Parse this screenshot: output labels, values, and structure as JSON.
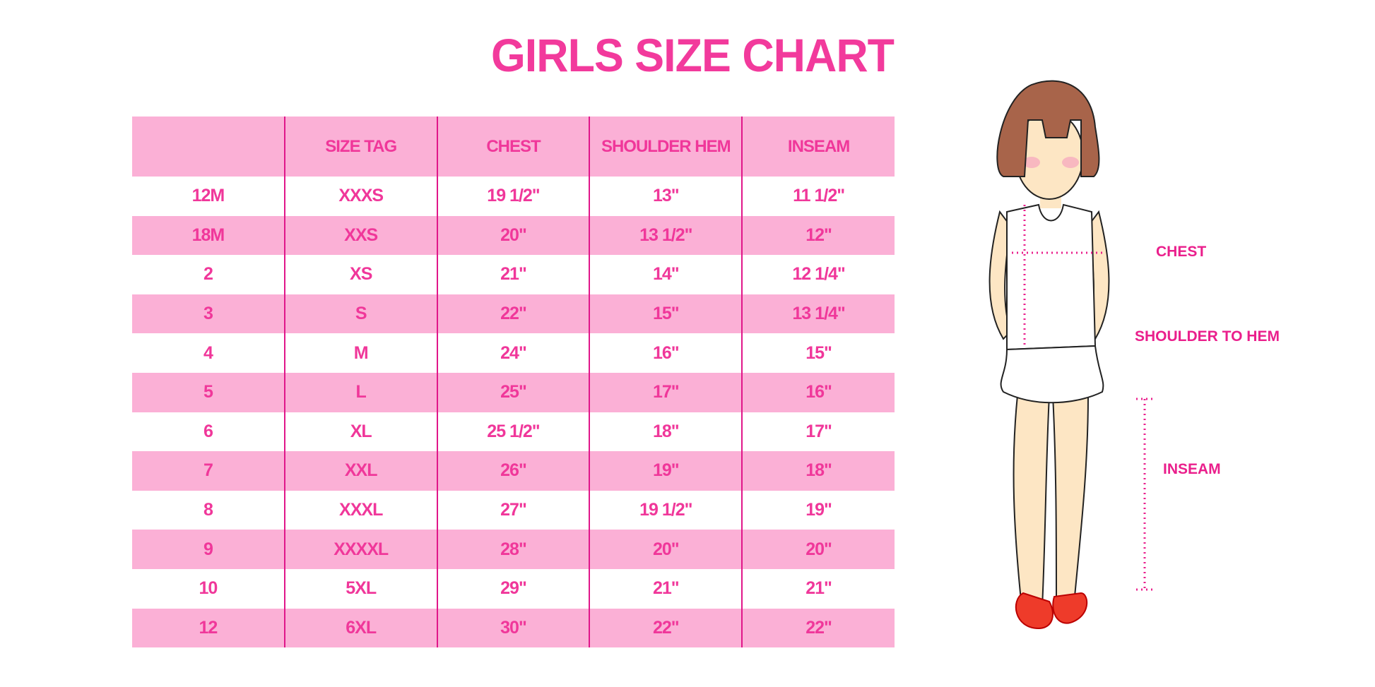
{
  "title": "GIRLS SIZE CHART",
  "table": {
    "headers": [
      "",
      "SIZE TAG",
      "CHEST",
      "SHOULDER HEM",
      "INSEAM"
    ],
    "rows": [
      [
        "12M",
        "XXXS",
        "19 1/2\"",
        "13\"",
        "11 1/2\""
      ],
      [
        "18M",
        "XXS",
        "20\"",
        "13 1/2\"",
        "12\""
      ],
      [
        "2",
        "XS",
        "21\"",
        "14\"",
        "12 1/4\""
      ],
      [
        "3",
        "S",
        "22\"",
        "15\"",
        "13 1/4\""
      ],
      [
        "4",
        "M",
        "24\"",
        "16\"",
        "15\""
      ],
      [
        "5",
        "L",
        "25\"",
        "17\"",
        "16\""
      ],
      [
        "6",
        "XL",
        "25 1/2\"",
        "18\"",
        "17\""
      ],
      [
        "7",
        "XXL",
        "26\"",
        "19\"",
        "18\""
      ],
      [
        "8",
        "XXXL",
        "27\"",
        "19 1/2\"",
        "19\""
      ],
      [
        "9",
        "XXXXL",
        "28\"",
        "20\"",
        "20\""
      ],
      [
        "10",
        "5XL",
        "29\"",
        "21\"",
        "21\""
      ],
      [
        "12",
        "6XL",
        "30\"",
        "22\"",
        "22\""
      ]
    ]
  },
  "figure": {
    "labels": {
      "chest": "CHEST",
      "shoulder_to_hem": "SHOULDER TO HEM",
      "inseam": "INSEAM"
    }
  },
  "colors": {
    "accent": "#f0379a",
    "row_band": "#fbb0d6",
    "divider": "#e0168a"
  }
}
